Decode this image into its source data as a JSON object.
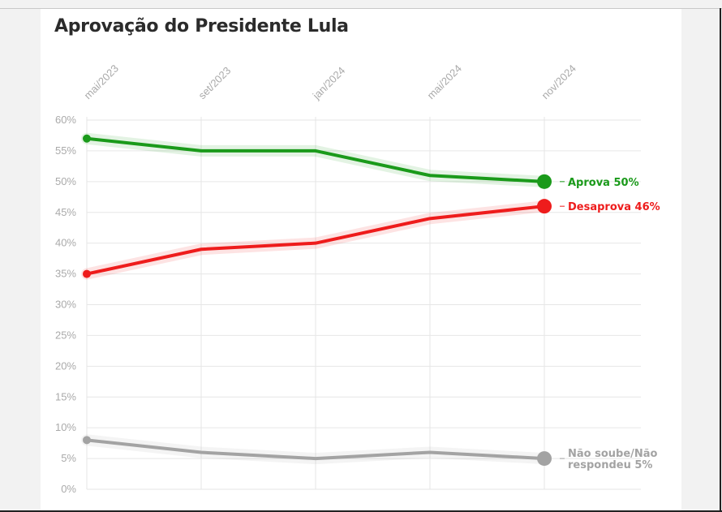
{
  "chart_data": {
    "type": "line",
    "title": "Aprovação do Presidente Lula",
    "x": [
      "mai/2023",
      "set/2023",
      "jan/2024",
      "mai/2024",
      "nov/2024"
    ],
    "ylim": [
      0,
      60
    ],
    "yticks": [
      "0%",
      "5%",
      "10%",
      "15%",
      "20%",
      "25%",
      "30%",
      "35%",
      "40%",
      "45%",
      "50%",
      "55%",
      "60%"
    ],
    "grid": true,
    "series": [
      {
        "name": "Aprova",
        "label_lines": [
          "Aprova 50%"
        ],
        "color": "#1a9a1a",
        "values": [
          57,
          55,
          55,
          51,
          50
        ]
      },
      {
        "name": "Desaprova",
        "label_lines": [
          "Desaprova 46%"
        ],
        "color": "#ee1c1c",
        "values": [
          35,
          39,
          40,
          44,
          46
        ]
      },
      {
        "name": "Não soube/Não respondeu",
        "label_lines": [
          "Não soube/Não",
          "respondeu 5%"
        ],
        "color": "#a3a3a3",
        "values": [
          8,
          6,
          5,
          6,
          5
        ]
      }
    ]
  }
}
